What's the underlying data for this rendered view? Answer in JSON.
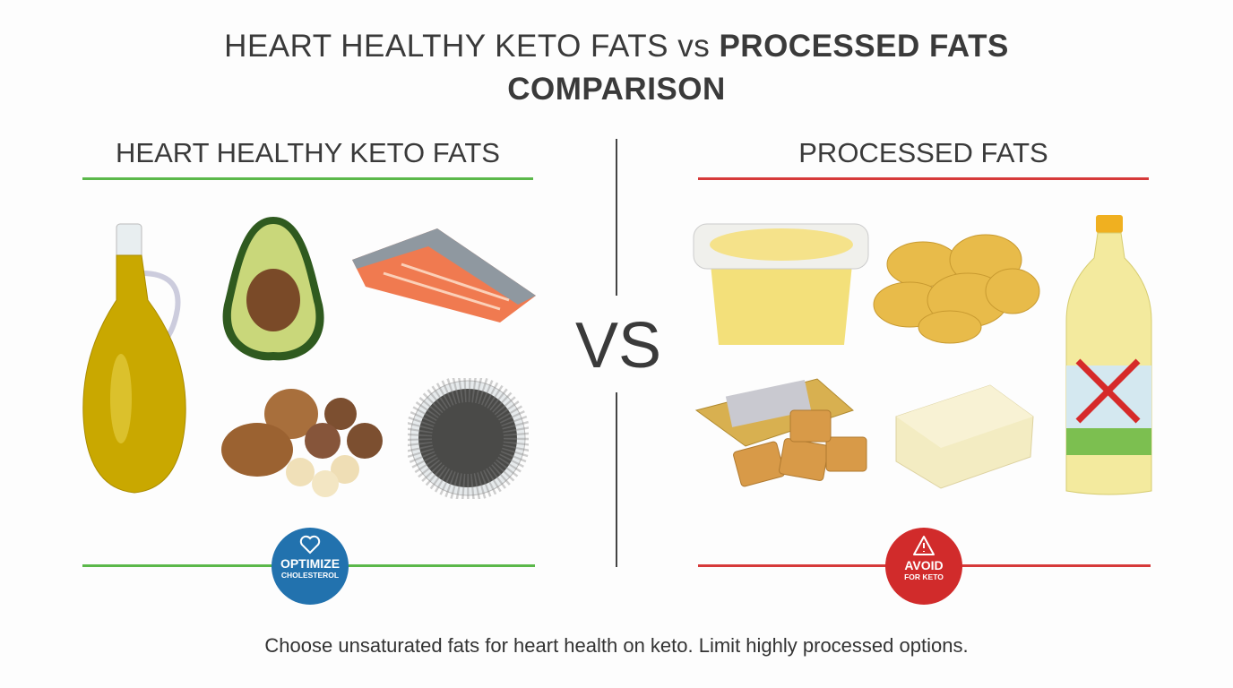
{
  "title": {
    "line1_normal": "HEART HEALTHY KETO FATS",
    "line1_vs": "vs",
    "line1_bold": "PROCESSED FATS",
    "line2": "COMPARISON"
  },
  "left": {
    "heading": "HEART HEALTHY KETO FATS",
    "accent": "#5bb84a",
    "foods": [
      "olive-oil",
      "avocado",
      "salmon",
      "nuts",
      "chia-seeds"
    ],
    "badge": {
      "icon": "heart-icon",
      "main": "OPTIMIZE",
      "sub": "CHOLESTEROL",
      "color": "#2272ae"
    }
  },
  "divider": {
    "label": "VS"
  },
  "right": {
    "heading": "PROCESSED FATS",
    "accent": "#d63a3a",
    "foods": [
      "margarine",
      "potato-chips",
      "crackers",
      "butter-block",
      "vegetable-oil"
    ],
    "badge": {
      "icon": "warning-icon",
      "main": "AVOID",
      "sub": "FOR KETO",
      "color": "#d12b2b"
    }
  },
  "footer": "Choose unsaturated fats for heart health on keto. Limit highly processed options."
}
